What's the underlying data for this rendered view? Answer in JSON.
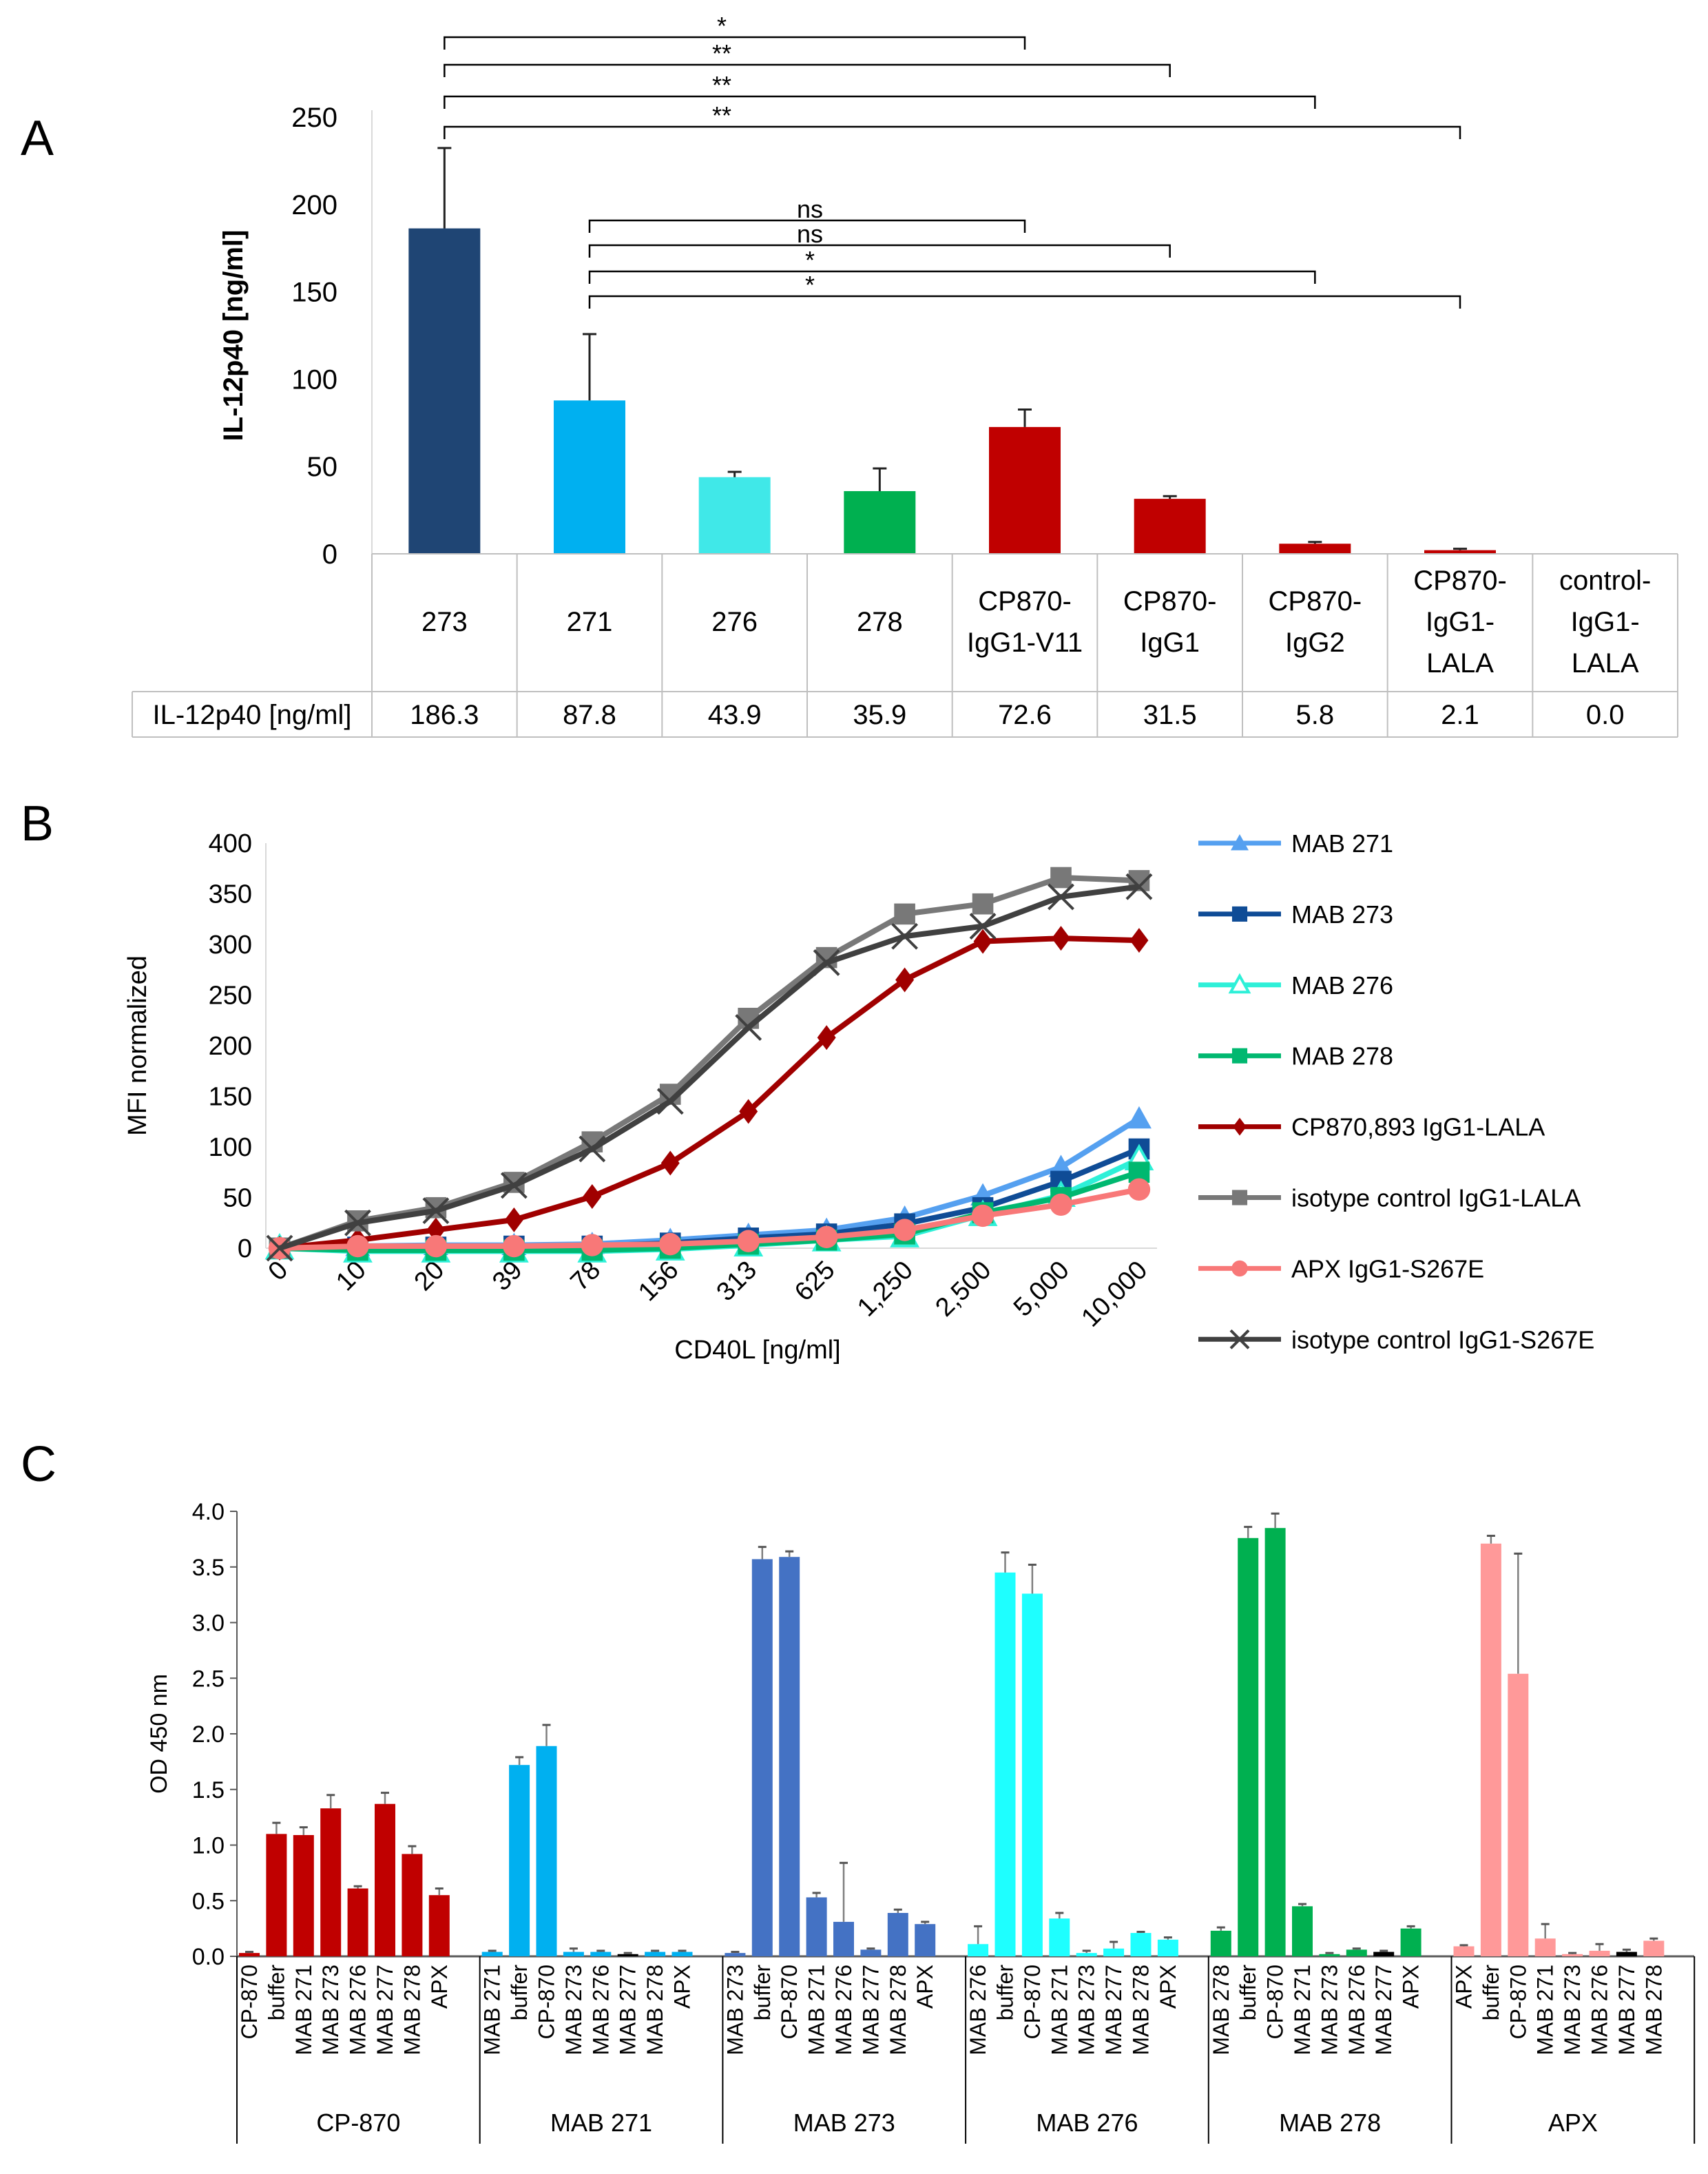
{
  "chart_data": [
    {
      "type": "bar",
      "panel_label": "A",
      "ylabel": "IL-12p40  [ng/ml]",
      "ylim": [
        0,
        250
      ],
      "yticks": [
        "0",
        "50",
        "100",
        "150",
        "200",
        "250"
      ],
      "categories": [
        [
          "273"
        ],
        [
          "271"
        ],
        [
          "276"
        ],
        [
          "278"
        ],
        [
          "CP870-",
          "IgG1-V11"
        ],
        [
          "CP870-",
          "IgG1"
        ],
        [
          "CP870-",
          "IgG2"
        ],
        [
          "CP870-",
          "IgG1-",
          "LALA"
        ],
        [
          "control-",
          "IgG1-",
          "LALA"
        ]
      ],
      "values": [
        186.3,
        87.8,
        43.9,
        35.9,
        72.6,
        31.5,
        5.8,
        2.1,
        0.0
      ],
      "errors": [
        46,
        38,
        3,
        13,
        10,
        1.5,
        1,
        0.8,
        0
      ],
      "colors": [
        "#1F4574",
        "#00B0F0",
        "#40E8E8",
        "#00B050",
        "#C00000",
        "#C00000",
        "#C00000",
        "#C00000",
        "#C00000"
      ],
      "table": {
        "row_label": "IL-12p40 [ng/ml]",
        "values": [
          "186.3",
          "87.8",
          "43.9",
          "35.9",
          "72.6",
          "31.5",
          "5.8",
          "2.1",
          "0.0"
        ]
      },
      "significance": [
        {
          "from": 0,
          "to": 4,
          "label": "*"
        },
        {
          "from": 0,
          "to": 5,
          "label": "**"
        },
        {
          "from": 0,
          "to": 6,
          "label": "**"
        },
        {
          "from": 0,
          "to": 7,
          "label": "**"
        },
        {
          "from": 1,
          "to": 4,
          "label": "ns"
        },
        {
          "from": 1,
          "to": 5,
          "label": "ns"
        },
        {
          "from": 1,
          "to": 6,
          "label": "*"
        },
        {
          "from": 1,
          "to": 7,
          "label": "*"
        }
      ]
    },
    {
      "type": "line",
      "panel_label": "B",
      "xlabel": "CD40L [ng/ml]",
      "ylabel": "MFI normalized",
      "ylim": [
        0,
        400
      ],
      "yticks": [
        "0",
        "50",
        "100",
        "150",
        "200",
        "250",
        "300",
        "350",
        "400"
      ],
      "x": [
        "0",
        "10",
        "20",
        "39",
        "78",
        "156",
        "313",
        "625",
        "1,250",
        "2,500",
        "5,000",
        "10,000"
      ],
      "legend": "right",
      "series": [
        {
          "name": "MAB 271",
          "color": "#55A0F0",
          "marker": "triangle",
          "values": [
            0,
            2,
            3,
            3,
            4,
            8,
            13,
            18,
            30,
            52,
            80,
            128
          ]
        },
        {
          "name": "MAB 273",
          "color": "#0F4C96",
          "marker": "square",
          "values": [
            0,
            1,
            1,
            2,
            2,
            5,
            10,
            14,
            24,
            40,
            66,
            98
          ]
        },
        {
          "name": "MAB 276",
          "color": "#2EF0D8",
          "marker": "triangle-open",
          "values": [
            0,
            -3,
            -3,
            -3,
            -3,
            -1,
            3,
            8,
            12,
            33,
            52,
            88
          ]
        },
        {
          "name": "MAB 278",
          "color": "#00B870",
          "marker": "square",
          "values": [
            0,
            -2,
            -2,
            -2,
            -2,
            0,
            4,
            8,
            14,
            35,
            50,
            75
          ]
        },
        {
          "name": "CP870,893 IgG1-LALA",
          "color": "#A00000",
          "marker": "diamond",
          "values": [
            0,
            8,
            18,
            28,
            51,
            84,
            135,
            208,
            265,
            303,
            306,
            304
          ]
        },
        {
          "name": "isotype control IgG1-LALA",
          "color": "#787878",
          "marker": "square",
          "values": [
            0,
            27,
            40,
            65,
            105,
            152,
            227,
            287,
            330,
            340,
            366,
            363
          ]
        },
        {
          "name": "APX IgG1-S267E",
          "color": "#F87878",
          "marker": "circle",
          "values": [
            0,
            2,
            2,
            2,
            3,
            4,
            7,
            11,
            18,
            32,
            43,
            58
          ]
        },
        {
          "name": "isotype control IgG1-S267E",
          "color": "#404040",
          "marker": "x",
          "values": [
            0,
            25,
            37,
            62,
            98,
            145,
            218,
            282,
            308,
            318,
            347,
            357
          ]
        }
      ]
    },
    {
      "type": "bar",
      "panel_label": "C",
      "ylabel": "OD 450 nm",
      "ylim": [
        0,
        4.0
      ],
      "yticks": [
        "0.0",
        "0.5",
        "1.0",
        "1.5",
        "2.0",
        "2.5",
        "3.0",
        "3.5",
        "4.0"
      ],
      "groups": [
        {
          "name": "CP-870",
          "labels": [
            "CP-870",
            "buffer",
            "MAB 271",
            "MAB 273",
            "MAB 276",
            "MAB 277",
            "MAB 278",
            "APX"
          ],
          "values": [
            0.03,
            1.1,
            1.09,
            1.33,
            0.61,
            1.37,
            0.92,
            0.55
          ],
          "errors": [
            0.01,
            0.1,
            0.07,
            0.12,
            0.02,
            0.1,
            0.07,
            0.06
          ],
          "colors": [
            "#C00000",
            "#C00000",
            "#C00000",
            "#C00000",
            "#C00000",
            "#C00000",
            "#C00000",
            "#C00000"
          ]
        },
        {
          "name": "MAB 271",
          "labels": [
            "MAB 271",
            "buffer",
            "CP-870",
            "MAB 273",
            "MAB 276",
            "MAB 277",
            "MAB 278",
            "APX"
          ],
          "values": [
            0.04,
            1.72,
            1.89,
            0.04,
            0.04,
            0.02,
            0.04,
            0.04
          ],
          "errors": [
            0.01,
            0.07,
            0.19,
            0.03,
            0.01,
            0.01,
            0.01,
            0.01
          ],
          "colors": [
            "#00B0F0",
            "#00B0F0",
            "#00B0F0",
            "#00B0F0",
            "#00B0F0",
            "#000000",
            "#00B0F0",
            "#00B0F0"
          ]
        },
        {
          "name": "MAB 273",
          "labels": [
            "MAB 273",
            "buffer",
            "CP-870",
            "MAB 271",
            "MAB 276",
            "MAB 277",
            "MAB 278",
            "APX"
          ],
          "values": [
            0.03,
            3.57,
            3.59,
            0.53,
            0.31,
            0.06,
            0.39,
            0.29
          ],
          "errors": [
            0.01,
            0.11,
            0.05,
            0.04,
            0.53,
            0.01,
            0.03,
            0.02
          ],
          "colors": [
            "#4472C4",
            "#4472C4",
            "#4472C4",
            "#4472C4",
            "#4472C4",
            "#4472C4",
            "#4472C4",
            "#4472C4"
          ]
        },
        {
          "name": "MAB 276",
          "labels": [
            "MAB 276",
            "buffer",
            "CP-870",
            "MAB 271",
            "MAB 273",
            "MAB 277",
            "MAB 278",
            "APX"
          ],
          "values": [
            0.11,
            3.45,
            3.26,
            0.34,
            0.03,
            0.07,
            0.21,
            0.15
          ],
          "errors": [
            0.16,
            0.18,
            0.26,
            0.05,
            0.02,
            0.06,
            0.01,
            0.02
          ],
          "colors": [
            "#1EFFFF",
            "#1EFFFF",
            "#1EFFFF",
            "#1EFFFF",
            "#1EFFFF",
            "#1EFFFF",
            "#1EFFFF",
            "#1EFFFF"
          ]
        },
        {
          "name": "MAB 278",
          "labels": [
            "MAB 278",
            "buffer",
            "CP-870",
            "MAB 271",
            "MAB 273",
            "MAB 276",
            "MAB 277",
            "APX"
          ],
          "values": [
            0.23,
            3.76,
            3.85,
            0.45,
            0.02,
            0.06,
            0.04,
            0.25
          ],
          "errors": [
            0.03,
            0.1,
            0.13,
            0.02,
            0.01,
            0.01,
            0.01,
            0.02
          ],
          "colors": [
            "#00B050",
            "#00B050",
            "#00B050",
            "#00B050",
            "#00B050",
            "#00B050",
            "#000000",
            "#00B050"
          ]
        },
        {
          "name": "APX",
          "labels": [
            "APX",
            "buffer",
            "CP-870",
            "MAB 271",
            "MAB 273",
            "MAB 276",
            "MAB 277",
            "MAB 278"
          ],
          "values": [
            0.09,
            3.71,
            2.54,
            0.16,
            0.02,
            0.05,
            0.04,
            0.14
          ],
          "errors": [
            0.01,
            0.07,
            1.08,
            0.13,
            0.01,
            0.06,
            0.02,
            0.02
          ],
          "colors": [
            "#FF9999",
            "#FF9999",
            "#FF9999",
            "#FF9999",
            "#FF9999",
            "#FF9999",
            "#000000",
            "#FF9999"
          ]
        }
      ]
    }
  ]
}
